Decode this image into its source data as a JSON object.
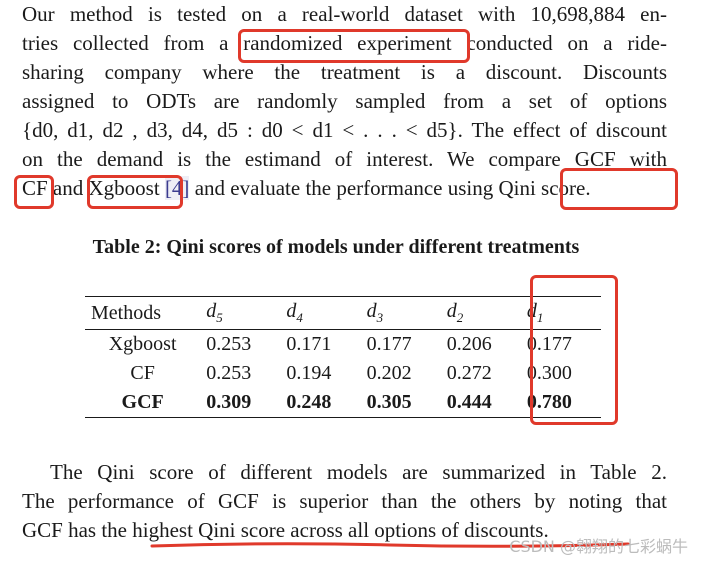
{
  "paragraph_1": [
    "Our method is tested on a real-world dataset with 10,698,884 en-",
    "tries collected from a randomized experiment conducted on a ride-",
    "sharing company where the treatment is a discount. Discounts",
    "assigned to ODTs are randomly sampled from a set of options",
    "{d0, d1, d2 , d3, d4, d5 : d0 < d1 < . . . < d5}. The effect of discount",
    "on the demand is the estimand of interest. We compare GCF with"
  ],
  "paragraph_1_last": {
    "before": "CF and Xgboost ",
    "ref": "[4]",
    "after": " and evaluate the performance using Qini score."
  },
  "table": {
    "caption": "Table 2: Qini scores of models under different treatments",
    "headers": [
      "Methods",
      "d5",
      "d4",
      "d3",
      "d2",
      "d1"
    ],
    "rows": [
      {
        "method": "Xgboost",
        "values": [
          "0.253",
          "0.171",
          "0.177",
          "0.206",
          "0.177"
        ],
        "bold": false
      },
      {
        "method": "CF",
        "values": [
          "0.253",
          "0.194",
          "0.202",
          "0.272",
          "0.300"
        ],
        "bold": false
      },
      {
        "method": "GCF",
        "values": [
          "0.309",
          "0.248",
          "0.305",
          "0.444",
          "0.780"
        ],
        "bold": true
      }
    ]
  },
  "paragraph_2": [
    "The Qini score of different models are summarized in Table 2.",
    "The performance of GCF is superior than the others by noting that",
    "GCF has the highest Qini score across all options of discounts."
  ],
  "watermark": "CSDN @翱翔的七彩蜗牛",
  "annotation_color": "#e0392b"
}
